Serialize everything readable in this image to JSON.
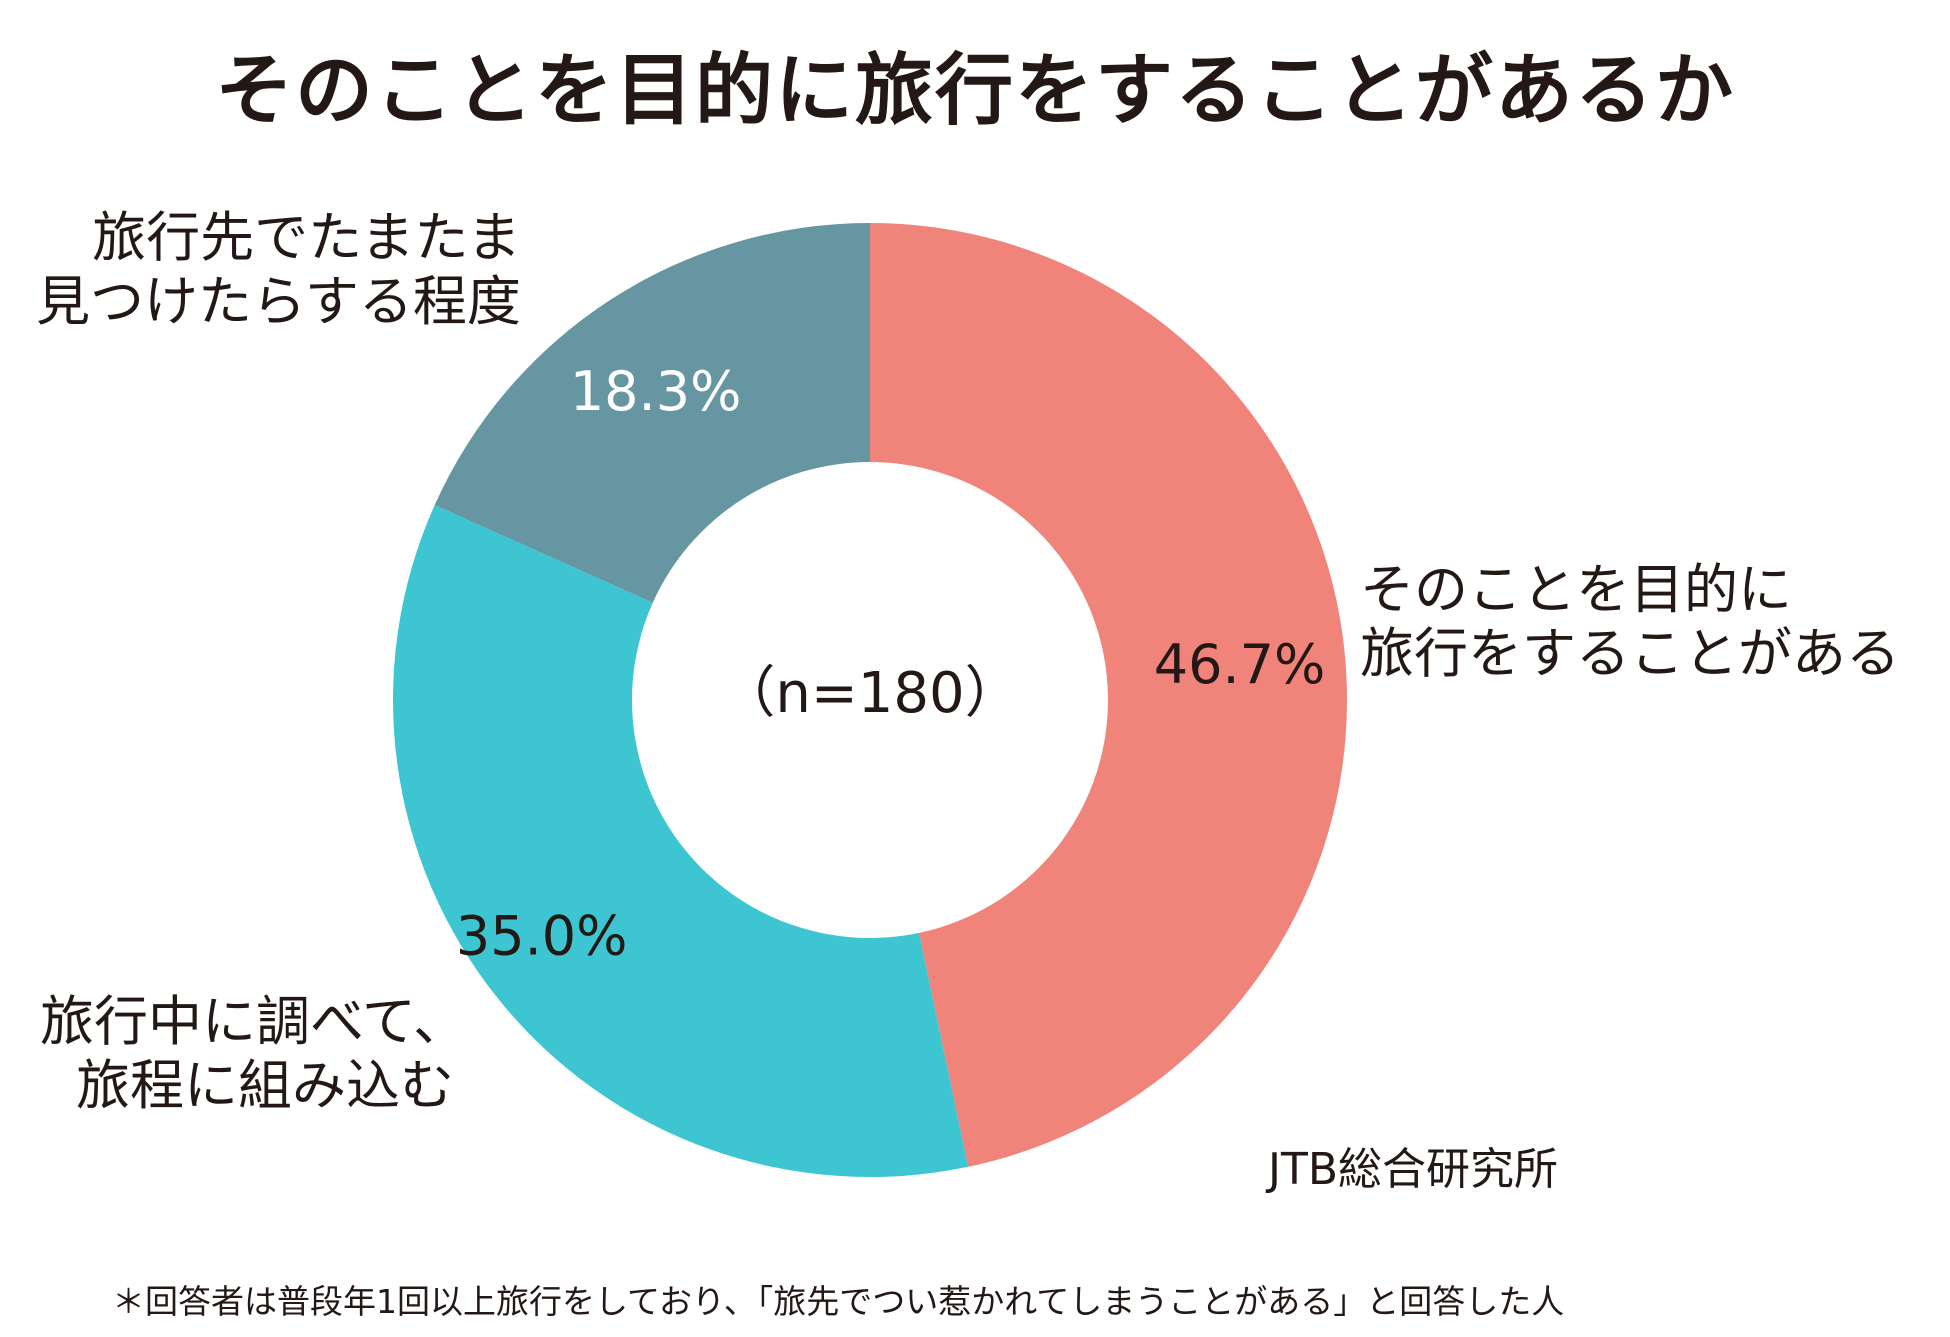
{
  "title": "そのことを目的に旅行をすることがあるか",
  "chart_data": {
    "type": "pie",
    "title": "そのことを目的に旅行をすることがあるか",
    "center_label": "（n=180）",
    "slices": [
      {
        "label_lines": [
          "そのことを目的に",
          "旅行をすることがある"
        ],
        "value": 46.7,
        "value_label": "46.7%",
        "color": "#F0837A",
        "value_text_color": "#231815"
      },
      {
        "label_lines": [
          "旅行中に調べて、",
          "旅程に組み込む"
        ],
        "value": 35.0,
        "value_label": "35.0%",
        "color": "#3DC6D2",
        "value_text_color": "#231815"
      },
      {
        "label_lines": [
          "旅行先でたまたま",
          "見つけたらする程度"
        ],
        "value": 18.3,
        "value_label": "18.3%",
        "color": "#6696A2",
        "value_text_color": "#ffffff"
      }
    ]
  },
  "source": "JTB総合研究所",
  "footnote": "＊回答者は普段年1回以上旅行をしており、「旅先でつい惹かれてしまうことがある」と回答した人"
}
